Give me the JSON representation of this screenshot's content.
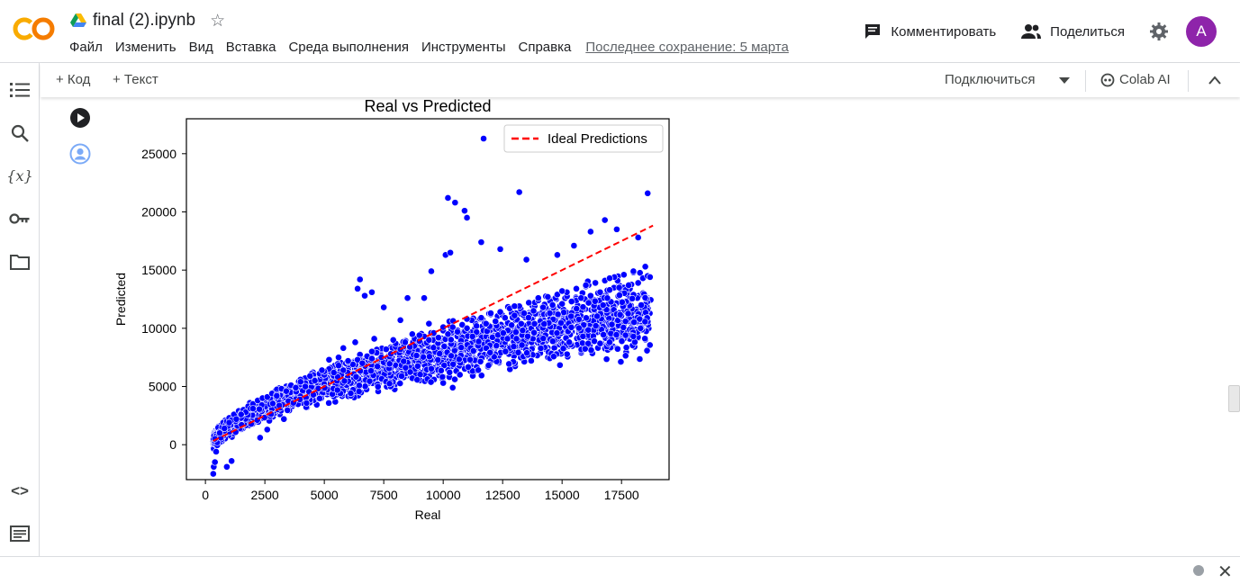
{
  "app": {
    "logo_text": "CO",
    "notebook_title": "final (2).ipynb",
    "menu": [
      "Файл",
      "Изменить",
      "Вид",
      "Вставка",
      "Среда выполнения",
      "Инструменты",
      "Справка"
    ],
    "last_saved": "Последнее сохранение: 5 марта",
    "comment_label": "Комментировать",
    "share_label": "Поделиться",
    "avatar_letter": "A"
  },
  "toolbar": {
    "add_code": "+ Код",
    "add_text": "+ Текст",
    "connect": "Подключиться",
    "colab_ai": "Colab AI"
  },
  "sidebar_icons": [
    "toc-icon",
    "search-icon",
    "variables-icon",
    "secrets-key-icon",
    "folder-icon",
    "code-snippets-icon",
    "terminal-icon"
  ],
  "colors": {
    "accent_orange": "#f9ab00",
    "avatar": "#8e24aa",
    "points": "#0000ff",
    "ideal_line": "#ff0000"
  },
  "chart_data": {
    "type": "scatter",
    "title": "Real vs Predicted",
    "xlabel": "Real",
    "ylabel": "Predicted",
    "xlim": [
      -800,
      19500
    ],
    "ylim": [
      -3000,
      28000
    ],
    "xticks": [
      0,
      2500,
      5000,
      7500,
      10000,
      12500,
      15000,
      17500
    ],
    "yticks": [
      0,
      5000,
      10000,
      15000,
      20000,
      25000
    ],
    "legend": {
      "placement": "top-right",
      "entries": [
        "Ideal Predictions"
      ]
    },
    "ideal_line": {
      "x": [
        326,
        18823
      ],
      "y": [
        326,
        18823
      ]
    },
    "series": [
      {
        "name": "Predictions",
        "x": [
          330,
          350,
          400,
          450,
          500,
          550,
          600,
          650,
          700,
          750,
          800,
          850,
          900,
          950,
          1000,
          1100,
          1200,
          1300,
          1400,
          1500,
          1600,
          1700,
          1800,
          1900,
          2000,
          2200,
          2400,
          2600,
          2800,
          3000,
          3200,
          3400,
          3600,
          3800,
          4000,
          4200,
          4400,
          4600,
          4800,
          5000,
          5200,
          5400,
          5600,
          5800,
          6000,
          6200,
          6400,
          6600,
          6800,
          7000,
          7200,
          7400,
          7600,
          7800,
          8000,
          8200,
          8400,
          8600,
          8800,
          9000,
          9200,
          9400,
          9600,
          9800,
          10000,
          10200,
          10400,
          10600,
          10800,
          11000,
          11200,
          11400,
          11600,
          11800,
          12000,
          12200,
          12400,
          12600,
          12800,
          13000,
          13200,
          13400,
          13600,
          13800,
          14000,
          14200,
          14400,
          14600,
          14800,
          15000,
          15200,
          15400,
          15600,
          15800,
          16000,
          16200,
          16400,
          16600,
          16800,
          17000,
          17200,
          17400,
          17600,
          17800,
          18000,
          18200,
          18400,
          18600,
          18700,
          400,
          600,
          800,
          1000,
          1500,
          2000,
          3000,
          4000,
          5000,
          6000,
          7000,
          8000,
          9000,
          10000,
          11000,
          12000,
          13000,
          14000,
          15000,
          16000,
          17000,
          18000,
          18500,
          6500,
          6400,
          6700,
          7000,
          7500,
          8500,
          9500,
          10500,
          11700,
          13200,
          10100,
          10300,
          10900,
          11000,
          10400,
          11600,
          12400,
          13500,
          14800,
          15500,
          16200,
          16800,
          17300,
          18200,
          18600,
          15300,
          16100,
          16600,
          17000,
          18000,
          18300,
          900,
          1100,
          2300,
          2600,
          3300,
          3700,
          4200,
          4900,
          5600,
          6300,
          7100,
          7900,
          8700,
          9400,
          10000,
          10200,
          5200,
          5800,
          8200,
          9200
        ],
        "y": [
          -2500,
          -1900,
          -1500,
          -600,
          200,
          700,
          1100,
          600,
          1500,
          1900,
          1200,
          1700,
          2000,
          1600,
          2300,
          2100,
          2600,
          2200,
          2900,
          2700,
          3000,
          2800,
          3300,
          3100,
          3500,
          3800,
          4000,
          4100,
          4400,
          4300,
          4800,
          4600,
          5100,
          4900,
          5600,
          5300,
          5900,
          5500,
          6100,
          6000,
          6500,
          6200,
          6800,
          6400,
          7100,
          6900,
          7300,
          7000,
          7600,
          7400,
          7900,
          7500,
          8200,
          7800,
          8400,
          8200,
          8800,
          8400,
          9100,
          8900,
          9300,
          9000,
          9600,
          9200,
          9800,
          9500,
          10100,
          9700,
          10300,
          10000,
          10700,
          10200,
          10900,
          10400,
          11200,
          10600,
          11400,
          10900,
          11700,
          11100,
          11900,
          11300,
          12200,
          11500,
          12400,
          11800,
          12700,
          12000,
          12900,
          12100,
          13100,
          12300,
          13400,
          12600,
          13600,
          12800,
          13900,
          13100,
          14100,
          13300,
          14400,
          13500,
          14600,
          13700,
          14800,
          13900,
          14300,
          14500,
          14400,
          500,
          1000,
          1400,
          1900,
          2600,
          3100,
          4200,
          5400,
          6300,
          7200,
          8000,
          8700,
          9400,
          10100,
          10800,
          11300,
          11900,
          12600,
          13200,
          13700,
          14300,
          14900,
          15300,
          14200,
          13400,
          12800,
          13100,
          11800,
          12600,
          14900,
          20800,
          26300,
          21700,
          16300,
          16500,
          20100,
          19500,
          4900,
          17400,
          16800,
          15900,
          16300,
          17100,
          18300,
          19300,
          18500,
          17800,
          21600,
          8800,
          8700,
          8700,
          8800,
          9300,
          10000,
          -1900,
          -1400,
          600,
          1300,
          2200,
          3600,
          5000,
          6400,
          7500,
          8800,
          9100,
          9000,
          9500,
          10400,
          5300,
          21200,
          7300,
          8300,
          10700,
          12600
        ]
      }
    ]
  },
  "extra_point_cloud_seed": 7
}
